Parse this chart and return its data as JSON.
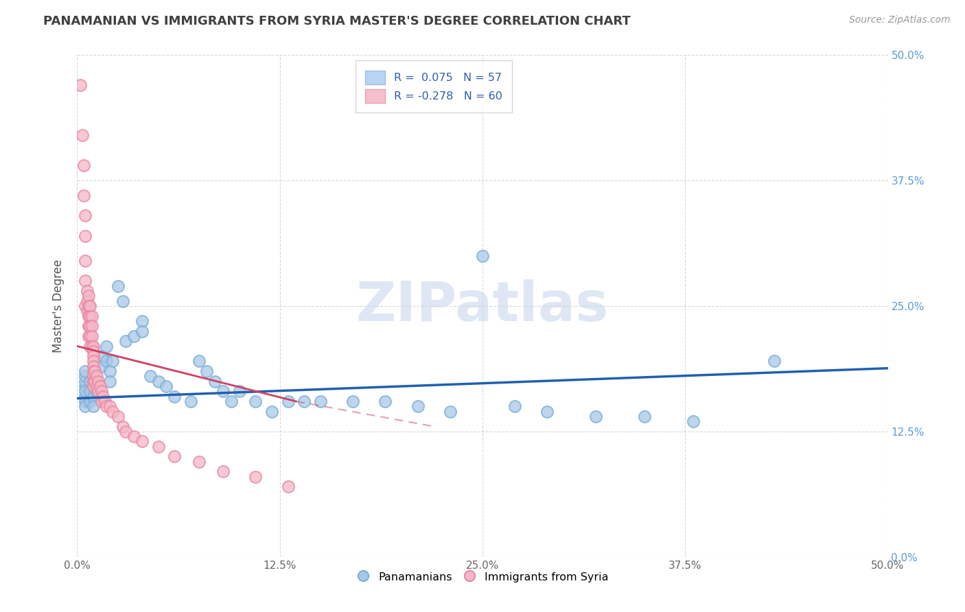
{
  "title": "PANAMANIAN VS IMMIGRANTS FROM SYRIA MASTER'S DEGREE CORRELATION CHART",
  "source_text": "Source: ZipAtlas.com",
  "ylabel": "Master's Degree",
  "xlim": [
    0.0,
    0.5
  ],
  "ylim": [
    0.0,
    0.5
  ],
  "xtick_vals": [
    0.0,
    0.125,
    0.25,
    0.375,
    0.5
  ],
  "ytick_vals": [
    0.0,
    0.125,
    0.25,
    0.375,
    0.5
  ],
  "R_blue": 0.075,
  "N_blue": 57,
  "R_pink": -0.278,
  "N_pink": 60,
  "blue_color": "#a8c8e8",
  "blue_edge_color": "#7bafd4",
  "pink_color": "#f4b8c8",
  "pink_edge_color": "#e888a0",
  "blue_line_color": "#2060b0",
  "pink_line_color": "#d04060",
  "pink_line_dash": [
    6,
    3
  ],
  "watermark_text": "ZIPatlas",
  "legend_label_blue": "Panamanians",
  "legend_label_pink": "Immigrants from Syria",
  "blue_scatter_x": [
    0.005,
    0.005,
    0.005,
    0.005,
    0.005,
    0.005,
    0.005,
    0.005,
    0.008,
    0.008,
    0.008,
    0.01,
    0.01,
    0.01,
    0.01,
    0.012,
    0.012,
    0.015,
    0.015,
    0.018,
    0.018,
    0.02,
    0.02,
    0.022,
    0.025,
    0.028,
    0.03,
    0.035,
    0.04,
    0.04,
    0.045,
    0.05,
    0.055,
    0.06,
    0.07,
    0.075,
    0.08,
    0.085,
    0.09,
    0.095,
    0.1,
    0.11,
    0.12,
    0.13,
    0.14,
    0.15,
    0.17,
    0.19,
    0.21,
    0.23,
    0.25,
    0.27,
    0.29,
    0.32,
    0.35,
    0.38,
    0.43
  ],
  "blue_scatter_y": [
    0.17,
    0.175,
    0.18,
    0.185,
    0.16,
    0.155,
    0.15,
    0.165,
    0.175,
    0.165,
    0.155,
    0.18,
    0.17,
    0.16,
    0.15,
    0.175,
    0.165,
    0.2,
    0.19,
    0.21,
    0.195,
    0.185,
    0.175,
    0.195,
    0.27,
    0.255,
    0.215,
    0.22,
    0.235,
    0.225,
    0.18,
    0.175,
    0.17,
    0.16,
    0.155,
    0.195,
    0.185,
    0.175,
    0.165,
    0.155,
    0.165,
    0.155,
    0.145,
    0.155,
    0.155,
    0.155,
    0.155,
    0.155,
    0.15,
    0.145,
    0.3,
    0.15,
    0.145,
    0.14,
    0.14,
    0.135,
    0.195
  ],
  "pink_scatter_x": [
    0.002,
    0.003,
    0.004,
    0.004,
    0.005,
    0.005,
    0.005,
    0.005,
    0.005,
    0.006,
    0.006,
    0.006,
    0.007,
    0.007,
    0.007,
    0.007,
    0.007,
    0.008,
    0.008,
    0.008,
    0.008,
    0.008,
    0.009,
    0.009,
    0.009,
    0.009,
    0.01,
    0.01,
    0.01,
    0.01,
    0.01,
    0.01,
    0.01,
    0.01,
    0.01,
    0.011,
    0.011,
    0.012,
    0.012,
    0.013,
    0.013,
    0.014,
    0.015,
    0.015,
    0.016,
    0.017,
    0.018,
    0.02,
    0.022,
    0.025,
    0.028,
    0.03,
    0.035,
    0.04,
    0.05,
    0.06,
    0.075,
    0.09,
    0.11,
    0.13
  ],
  "pink_scatter_y": [
    0.47,
    0.42,
    0.39,
    0.36,
    0.34,
    0.32,
    0.295,
    0.275,
    0.25,
    0.265,
    0.255,
    0.245,
    0.26,
    0.25,
    0.24,
    0.23,
    0.22,
    0.25,
    0.24,
    0.23,
    0.22,
    0.21,
    0.24,
    0.23,
    0.22,
    0.21,
    0.21,
    0.205,
    0.2,
    0.195,
    0.19,
    0.185,
    0.18,
    0.175,
    0.17,
    0.185,
    0.175,
    0.18,
    0.17,
    0.175,
    0.165,
    0.17,
    0.165,
    0.155,
    0.16,
    0.155,
    0.15,
    0.15,
    0.145,
    0.14,
    0.13,
    0.125,
    0.12,
    0.115,
    0.11,
    0.1,
    0.095,
    0.085,
    0.08,
    0.07
  ],
  "blue_line_x": [
    0.0,
    0.5
  ],
  "blue_line_y": [
    0.158,
    0.188
  ],
  "pink_line_x": [
    0.0,
    0.135
  ],
  "pink_line_y": [
    0.21,
    0.155
  ]
}
